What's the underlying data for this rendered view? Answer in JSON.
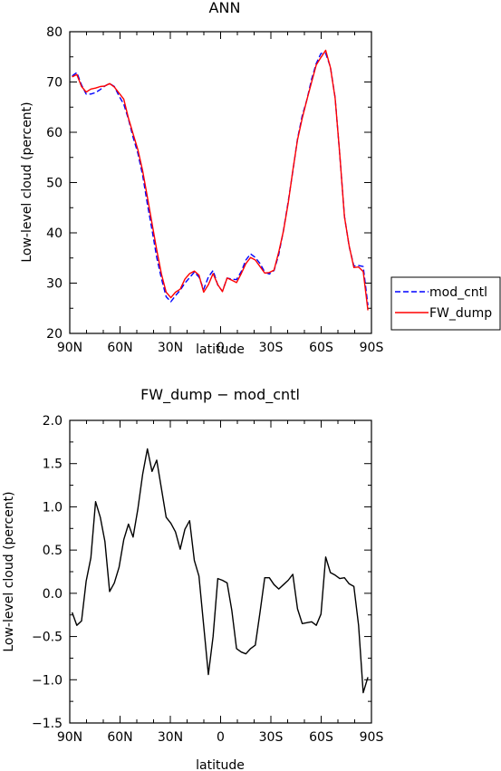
{
  "chart_data": [
    {
      "type": "line",
      "title": "ANN",
      "xlabel": "latitude",
      "ylabel": "Low-level cloud (percent)",
      "xlim": [
        -90,
        90
      ],
      "ylim": [
        20,
        80
      ],
      "xticks": [
        -90,
        -60,
        -30,
        0,
        30,
        60,
        90
      ],
      "xtick_labels": [
        "90N",
        "60N",
        "30N",
        "0",
        "30S",
        "60S",
        "90S"
      ],
      "yticks": [
        20,
        30,
        40,
        50,
        60,
        70,
        80
      ],
      "ytick_labels": [
        "20",
        "30",
        "40",
        "50",
        "60",
        "70",
        "80"
      ],
      "grid": false,
      "legend_position": "outside-right",
      "x": [
        -88.6,
        -85.8,
        -83.0,
        -80.2,
        -77.4,
        -74.6,
        -71.8,
        -69.0,
        -66.2,
        -63.4,
        -60.6,
        -57.8,
        -55.0,
        -52.2,
        -49.4,
        -46.5,
        -43.7,
        -40.9,
        -38.1,
        -35.3,
        -32.5,
        -29.7,
        -26.9,
        -24.1,
        -21.3,
        -18.5,
        -15.7,
        -12.9,
        -10.1,
        -7.3,
        -4.5,
        -1.7,
        1.1,
        3.9,
        6.7,
        9.5,
        12.3,
        15.1,
        17.9,
        20.7,
        23.5,
        26.3,
        29.1,
        31.9,
        34.7,
        37.5,
        40.3,
        43.1,
        45.9,
        48.7,
        51.5,
        54.3,
        57.1,
        59.9,
        62.7,
        65.5,
        68.3,
        71.1,
        73.9,
        76.7,
        79.5,
        82.3,
        85.1,
        87.9
      ],
      "series": [
        {
          "name": "mod_cntl",
          "color": "#0000ff",
          "dash": "dashed",
          "values": [
            71.2,
            71.9,
            69.4,
            67.6,
            67.6,
            67.9,
            68.5,
            69.2,
            69.7,
            69.1,
            67.2,
            65.6,
            62.6,
            59.0,
            55.9,
            51.4,
            45.7,
            40.6,
            35.1,
            30.9,
            27.3,
            26.3,
            27.5,
            28.6,
            30.0,
            31.1,
            32.2,
            31.2,
            28.8,
            31.2,
            32.5,
            29.6,
            28.4,
            31.0,
            30.8,
            30.7,
            32.3,
            34.6,
            35.8,
            35.1,
            33.9,
            32.2,
            31.8,
            32.5,
            35.7,
            40.5,
            46.2,
            52.2,
            58.7,
            63.3,
            66.5,
            70.6,
            73.7,
            75.7,
            75.7,
            73.0,
            66.9,
            55.6,
            43.3,
            37.3,
            33.4,
            33.5,
            33.3,
            25.6
          ]
        },
        {
          "name": "FW_dump",
          "color": "#ff0000",
          "dash": "solid",
          "values": [
            71.0,
            71.5,
            69.1,
            68.0,
            68.6,
            68.8,
            69.1,
            69.2,
            69.7,
            69.0,
            67.8,
            66.6,
            62.8,
            59.7,
            56.6,
            52.3,
            47.1,
            41.9,
            36.6,
            31.8,
            28.2,
            27.1,
            28.2,
            28.8,
            30.8,
            31.9,
            32.4,
            31.6,
            28.2,
            29.7,
            31.9,
            29.7,
            28.3,
            31.0,
            30.6,
            30.1,
            31.9,
            33.9,
            35.1,
            34.6,
            33.3,
            32.0,
            32.1,
            32.6,
            36.2,
            40.4,
            45.9,
            52.4,
            58.5,
            62.8,
            66.5,
            70.0,
            73.4,
            74.9,
            76.3,
            72.9,
            66.8,
            55.7,
            43.2,
            37.4,
            33.1,
            33.2,
            32.3,
            24.6
          ]
        }
      ]
    },
    {
      "type": "line",
      "title": "FW_dump − mod_cntl",
      "xlabel": "latitude",
      "ylabel": "Low-level cloud (percent)",
      "xlim": [
        -90,
        90
      ],
      "ylim": [
        -1.5,
        2.0
      ],
      "xticks": [
        -90,
        -60,
        -30,
        0,
        30,
        60,
        90
      ],
      "xtick_labels": [
        "90N",
        "60N",
        "30N",
        "0",
        "30S",
        "60S",
        "90S"
      ],
      "yticks": [
        -1.5,
        -1.0,
        -0.5,
        0.0,
        0.5,
        1.0,
        1.5,
        2.0
      ],
      "ytick_labels": [
        "−1.5",
        "−1.0",
        "−0.5",
        "0.0",
        "0.5",
        "1.0",
        "1.5",
        "2.0"
      ],
      "grid": false,
      "x": [
        -88.6,
        -85.8,
        -83.0,
        -80.2,
        -77.4,
        -74.6,
        -71.8,
        -69.0,
        -66.2,
        -63.4,
        -60.6,
        -57.8,
        -55.0,
        -52.2,
        -49.4,
        -46.5,
        -43.7,
        -40.9,
        -38.1,
        -35.3,
        -32.5,
        -29.7,
        -26.9,
        -24.1,
        -21.3,
        -18.5,
        -15.7,
        -12.9,
        -10.1,
        -7.3,
        -4.5,
        -1.7,
        1.1,
        3.9,
        6.7,
        9.5,
        12.3,
        15.1,
        17.9,
        20.7,
        23.5,
        26.3,
        29.1,
        31.9,
        34.7,
        37.5,
        40.3,
        43.1,
        45.9,
        48.7,
        51.5,
        54.3,
        57.1,
        59.9,
        62.7,
        65.5,
        68.3,
        71.1,
        73.9,
        76.7,
        79.5,
        82.3,
        85.1,
        87.9
      ],
      "series": [
        {
          "color": "#000000",
          "dash": "solid",
          "values": [
            -0.22,
            -0.37,
            -0.32,
            0.14,
            0.41,
            1.06,
            0.88,
            0.6,
            0.02,
            0.12,
            0.3,
            0.62,
            0.8,
            0.65,
            0.97,
            1.38,
            1.67,
            1.41,
            1.54,
            1.21,
            0.88,
            0.81,
            0.71,
            0.51,
            0.74,
            0.84,
            0.38,
            0.2,
            -0.37,
            -0.94,
            -0.5,
            0.17,
            0.15,
            0.12,
            -0.2,
            -0.64,
            -0.68,
            -0.7,
            -0.64,
            -0.6,
            -0.22,
            0.18,
            0.18,
            0.1,
            0.05,
            0.1,
            0.15,
            0.22,
            -0.18,
            -0.35,
            -0.34,
            -0.33,
            -0.37,
            -0.24,
            0.42,
            0.24,
            0.21,
            0.17,
            0.18,
            0.11,
            0.08,
            -0.37,
            -1.15,
            -0.97
          ]
        }
      ]
    }
  ]
}
